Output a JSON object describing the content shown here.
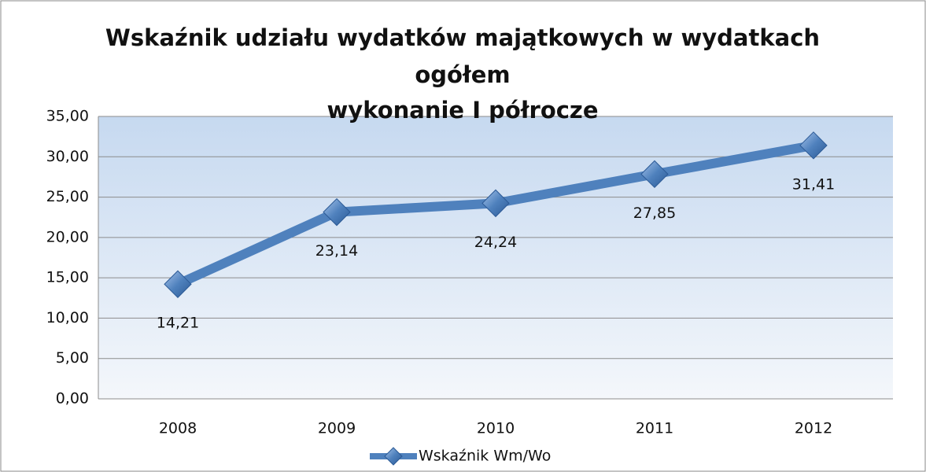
{
  "chart_data": {
    "type": "line",
    "title": [
      "Wskaźnik udziału wydatków majątkowych w wydatkach",
      "ogółem",
      "wykonanie I półrocze"
    ],
    "categories": [
      "2008",
      "2009",
      "2010",
      "2011",
      "2012"
    ],
    "series": [
      {
        "name": "Wskaźnik Wm/Wo",
        "color": "#4f81bd",
        "values": [
          14.21,
          23.14,
          24.24,
          27.85,
          31.41
        ],
        "value_labels": [
          "14,21",
          "23,14",
          "24,24",
          "27,85",
          "31,41"
        ]
      }
    ],
    "ylim": [
      0,
      35
    ],
    "yticks": [
      {
        "value": 0,
        "label": "0,00"
      },
      {
        "value": 5,
        "label": "5,00"
      },
      {
        "value": 10,
        "label": "10,00"
      },
      {
        "value": 15,
        "label": "15,00"
      },
      {
        "value": 20,
        "label": "20,00"
      },
      {
        "value": 25,
        "label": "25,00"
      },
      {
        "value": 30,
        "label": "30,00"
      },
      {
        "value": 35,
        "label": "35,00"
      }
    ],
    "grid": true,
    "legend": "bottom"
  }
}
